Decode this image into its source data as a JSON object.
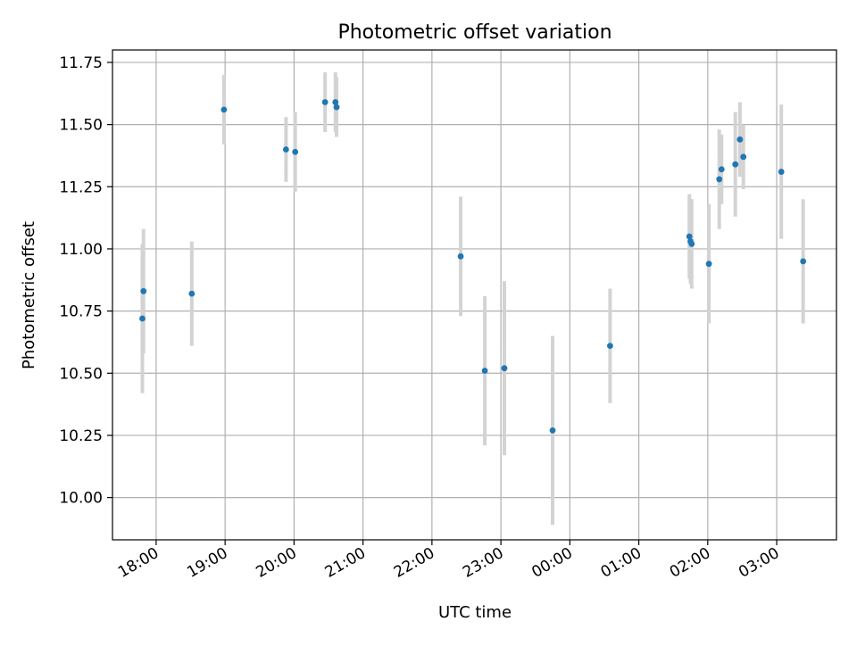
{
  "chart_data": {
    "type": "scatter",
    "title": "Photometric offset variation",
    "xlabel": "UTC time",
    "ylabel": "Photometric offset",
    "x_unit": "UTC time (hh:mm, spanning midnight)",
    "xlim": [
      "17:22",
      "03:52"
    ],
    "ylim": [
      9.83,
      11.8
    ],
    "x_ticks": [
      "18:00",
      "19:00",
      "20:00",
      "21:00",
      "22:00",
      "23:00",
      "00:00",
      "01:00",
      "02:00",
      "03:00"
    ],
    "y_ticks": [
      "10.00",
      "10.25",
      "10.50",
      "10.75",
      "11.00",
      "11.25",
      "11.50",
      "11.75"
    ],
    "grid": true,
    "marker_color": "#1f77b4",
    "errorbar_color": "#d3d3d3",
    "series": [
      {
        "points": [
          {
            "x": "17:48",
            "y": 10.72,
            "err": 0.3
          },
          {
            "x": "17:49",
            "y": 10.83,
            "err": 0.25
          },
          {
            "x": "18:31",
            "y": 10.82,
            "err": 0.21
          },
          {
            "x": "18:59",
            "y": 11.56,
            "err": 0.14
          },
          {
            "x": "19:53",
            "y": 11.4,
            "err": 0.13
          },
          {
            "x": "20:01",
            "y": 11.39,
            "err": 0.16
          },
          {
            "x": "20:27",
            "y": 11.59,
            "err": 0.12
          },
          {
            "x": "20:36",
            "y": 11.59,
            "err": 0.12
          },
          {
            "x": "20:37",
            "y": 11.57,
            "err": 0.12
          },
          {
            "x": "22:25",
            "y": 10.97,
            "err": 0.24
          },
          {
            "x": "22:46",
            "y": 10.51,
            "err": 0.3
          },
          {
            "x": "23:03",
            "y": 10.52,
            "err": 0.35
          },
          {
            "x": "23:45",
            "y": 10.27,
            "err": 0.38
          },
          {
            "x": "00:35",
            "y": 10.61,
            "err": 0.23
          },
          {
            "x": "01:44",
            "y": 11.05,
            "err": 0.17
          },
          {
            "x": "01:45",
            "y": 11.03,
            "err": 0.17
          },
          {
            "x": "01:46",
            "y": 11.02,
            "err": 0.18
          },
          {
            "x": "02:01",
            "y": 10.94,
            "err": 0.24
          },
          {
            "x": "02:10",
            "y": 11.28,
            "err": 0.2
          },
          {
            "x": "02:12",
            "y": 11.32,
            "err": 0.14
          },
          {
            "x": "02:24",
            "y": 11.34,
            "err": 0.21
          },
          {
            "x": "02:28",
            "y": 11.44,
            "err": 0.15
          },
          {
            "x": "02:31",
            "y": 11.37,
            "err": 0.13
          },
          {
            "x": "03:04",
            "y": 11.31,
            "err": 0.27
          },
          {
            "x": "03:23",
            "y": 10.95,
            "err": 0.25
          }
        ]
      }
    ]
  }
}
